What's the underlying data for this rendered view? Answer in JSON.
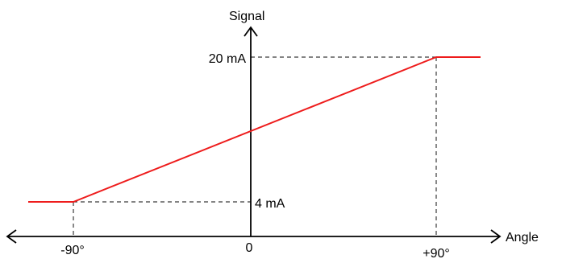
{
  "axes": {
    "y_label": "Signal",
    "x_label": "Angle"
  },
  "y_ticks": {
    "high": "20 mA",
    "low": "4 mA"
  },
  "x_ticks": {
    "negative": "-90°",
    "zero": "0",
    "positive": "+90°"
  },
  "colors": {
    "signal_line": "#ee1c1c",
    "axis": "#000000",
    "guide": "#3a3a3a"
  },
  "chart_data": {
    "type": "line",
    "title": "",
    "xlabel": "Angle",
    "ylabel": "Signal",
    "series": [
      {
        "x": [
          -90,
          90
        ],
        "y": [
          4,
          20
        ]
      }
    ],
    "ylim_labels": [
      "4 mA",
      "20 mA"
    ],
    "grid": false
  }
}
